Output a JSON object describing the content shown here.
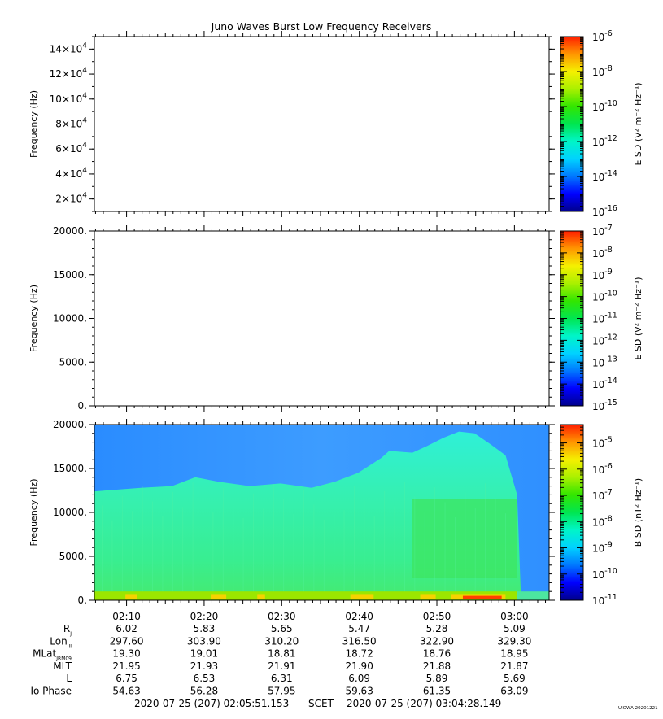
{
  "chart_data": {
    "title": "Juno Waves Burst Low Frequency Receivers",
    "type": "heatmap",
    "panels": [
      {
        "id": "top",
        "ylabel": "Frequency (Hz)",
        "ylim": [
          10000,
          150000
        ],
        "yticks": [
          {
            "v": 20000,
            "m": "2×10",
            "e": "4"
          },
          {
            "v": 40000,
            "m": "4×10",
            "e": "4"
          },
          {
            "v": 60000,
            "m": "6×10",
            "e": "4"
          },
          {
            "v": 80000,
            "m": "8×10",
            "e": "4"
          },
          {
            "v": 100000,
            "m": "10×10",
            "e": "4"
          },
          {
            "v": 120000,
            "m": "12×10",
            "e": "4"
          },
          {
            "v": 140000,
            "m": "14×10",
            "e": "4"
          }
        ],
        "cbar_label": "E SD (V² m⁻² Hz⁻¹)",
        "cbar_exponents": [
          -6,
          -8,
          -10,
          -12,
          -14,
          -16
        ],
        "cbar_range": [
          -16,
          -6
        ],
        "has_data": false
      },
      {
        "id": "middle",
        "ylabel": "Frequency (Hz)",
        "ylim": [
          0,
          20000
        ],
        "yticks": [
          {
            "v": 0,
            "t": "0."
          },
          {
            "v": 5000,
            "t": "5000."
          },
          {
            "v": 10000,
            "t": "10000."
          },
          {
            "v": 15000,
            "t": "15000."
          },
          {
            "v": 20000,
            "t": "20000."
          }
        ],
        "cbar_label": "E SD (V² m⁻² Hz⁻¹)",
        "cbar_exponents": [
          -7,
          -8,
          -9,
          -10,
          -11,
          -12,
          -13,
          -14,
          -15
        ],
        "cbar_range": [
          -15,
          -7
        ],
        "has_data": false
      },
      {
        "id": "bottom",
        "ylabel": "Frequency (Hz)",
        "ylim": [
          0,
          20000
        ],
        "yticks": [
          {
            "v": 0,
            "t": "0."
          },
          {
            "v": 5000,
            "t": "5000."
          },
          {
            "v": 10000,
            "t": "10000."
          },
          {
            "v": 15000,
            "t": "15000."
          },
          {
            "v": 20000,
            "t": "20000."
          }
        ],
        "cbar_label": "B SD (nT² Hz⁻¹)",
        "cbar_exponents": [
          -5,
          -6,
          -7,
          -8,
          -9,
          -10,
          -11
        ],
        "cbar_range": [
          -11,
          -4.3
        ],
        "has_data": true,
        "emission_upper_envelope_hz": [
          [
            0,
            12400
          ],
          [
            6,
            12800
          ],
          [
            10,
            13000
          ],
          [
            13,
            14000
          ],
          [
            16,
            13500
          ],
          [
            20,
            13000
          ],
          [
            24,
            13300
          ],
          [
            28,
            12800
          ],
          [
            31,
            13500
          ],
          [
            34,
            14500
          ],
          [
            37,
            16200
          ],
          [
            38,
            17000
          ],
          [
            41,
            16800
          ],
          [
            43,
            17600
          ],
          [
            45,
            18500
          ],
          [
            47,
            19200
          ],
          [
            49,
            19000
          ],
          [
            51,
            17800
          ],
          [
            53,
            16500
          ],
          [
            54.5,
            12000
          ],
          [
            55,
            0
          ]
        ],
        "low_band_hz": [
          0,
          1000
        ]
      }
    ],
    "x_axis": {
      "range_minutes": [
        0,
        58.62
      ],
      "ticks": [
        {
          "min": 4.15,
          "t": "02:10"
        },
        {
          "min": 14.15,
          "t": "02:20"
        },
        {
          "min": 24.15,
          "t": "02:30"
        },
        {
          "min": 34.15,
          "t": "02:40"
        },
        {
          "min": 44.15,
          "t": "02:50"
        },
        {
          "min": 54.15,
          "t": "03:00"
        }
      ]
    },
    "ephemeris": [
      {
        "label": "R",
        "sub": "J",
        "values": [
          "6.02",
          "5.83",
          "5.65",
          "5.47",
          "5.28",
          "5.09"
        ]
      },
      {
        "label": "Lon",
        "sub": "III",
        "values": [
          "297.60",
          "303.90",
          "310.20",
          "316.50",
          "322.90",
          "329.30"
        ]
      },
      {
        "label": "MLat",
        "sub": "JRM09",
        "values": [
          "19.30",
          "19.01",
          "18.81",
          "18.72",
          "18.76",
          "18.95"
        ]
      },
      {
        "label": "MLT",
        "sub": "",
        "values": [
          "21.95",
          "21.93",
          "21.91",
          "21.90",
          "21.88",
          "21.87"
        ]
      },
      {
        "label": "L",
        "sub": "",
        "values": [
          "6.75",
          "6.53",
          "6.31",
          "6.09",
          "5.89",
          "5.69"
        ]
      },
      {
        "label": "Io Phase",
        "sub": "",
        "values": [
          "54.63",
          "56.28",
          "57.95",
          "59.63",
          "61.35",
          "63.09"
        ]
      }
    ],
    "time_range": {
      "start": "2020-07-25 (207) 02:05:51.153",
      "frame": "SCET",
      "end": "2020-07-25 (207) 03:04:28.149"
    },
    "credit": "UIOWA 20201221"
  }
}
